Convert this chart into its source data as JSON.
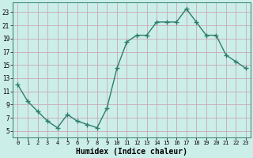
{
  "x": [
    0,
    1,
    2,
    3,
    4,
    5,
    6,
    7,
    8,
    9,
    10,
    11,
    12,
    13,
    14,
    15,
    16,
    17,
    18,
    19,
    20,
    21,
    22,
    23
  ],
  "y": [
    12,
    9.5,
    8,
    6.5,
    5.5,
    7.5,
    6.5,
    6,
    5.5,
    8.5,
    14.5,
    18.5,
    19.5,
    19.5,
    21.5,
    21.5,
    21.5,
    23.5,
    21.5,
    19.5,
    19.5,
    16.5,
    15.5,
    14.5
  ],
  "line_color": "#2d7d6a",
  "marker": "+",
  "marker_size": 4,
  "linewidth": 1.0,
  "bg_color": "#cceee8",
  "grid_color_major": "#c8a8b8",
  "grid_color_minor": "#c8a8b8",
  "xlabel": "Humidex (Indice chaleur)",
  "xlabel_fontsize": 7,
  "ylabel_ticks": [
    5,
    7,
    9,
    11,
    13,
    15,
    17,
    19,
    21,
    23
  ],
  "xlim": [
    -0.5,
    23.5
  ],
  "ylim": [
    4.0,
    24.5
  ],
  "xtick_labels": [
    "0",
    "1",
    "2",
    "3",
    "4",
    "5",
    "6",
    "7",
    "8",
    "9",
    "10",
    "11",
    "12",
    "13",
    "14",
    "15",
    "16",
    "17",
    "18",
    "19",
    "20",
    "21",
    "22",
    "23"
  ]
}
